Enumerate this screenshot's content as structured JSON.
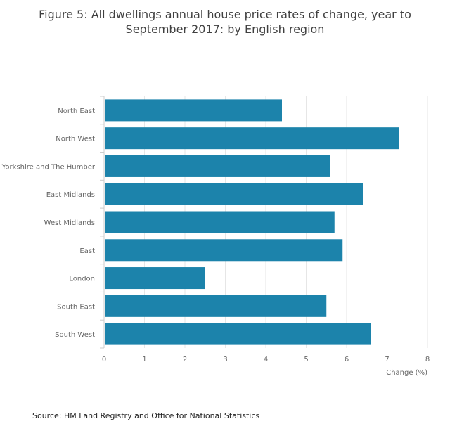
{
  "title": {
    "line1": "Figure 5: All dwellings annual house price rates of change, year to",
    "line2": "September 2017: by English region"
  },
  "source": "Source: HM Land Registry and Office for National Statistics",
  "colors": {
    "bar": "#1c83ab",
    "grid": "#e6e6e6",
    "axis": "#cccccc",
    "tick_text": "#666666"
  },
  "chart_data": {
    "type": "bar",
    "orientation": "horizontal",
    "categories": [
      "North East",
      "North West",
      "Yorkshire and The Humber",
      "East Midlands",
      "West Midlands",
      "East",
      "London",
      "South East",
      "South West"
    ],
    "values": [
      4.4,
      7.3,
      5.6,
      6.4,
      5.7,
      5.9,
      2.5,
      5.5,
      6.6
    ],
    "xlabel": "Change (%)",
    "xlim": [
      0,
      8
    ],
    "xticks": [
      "0",
      "1",
      "2",
      "3",
      "4",
      "5",
      "6",
      "7",
      "8"
    ],
    "grid": "vertical",
    "legend": "none"
  }
}
